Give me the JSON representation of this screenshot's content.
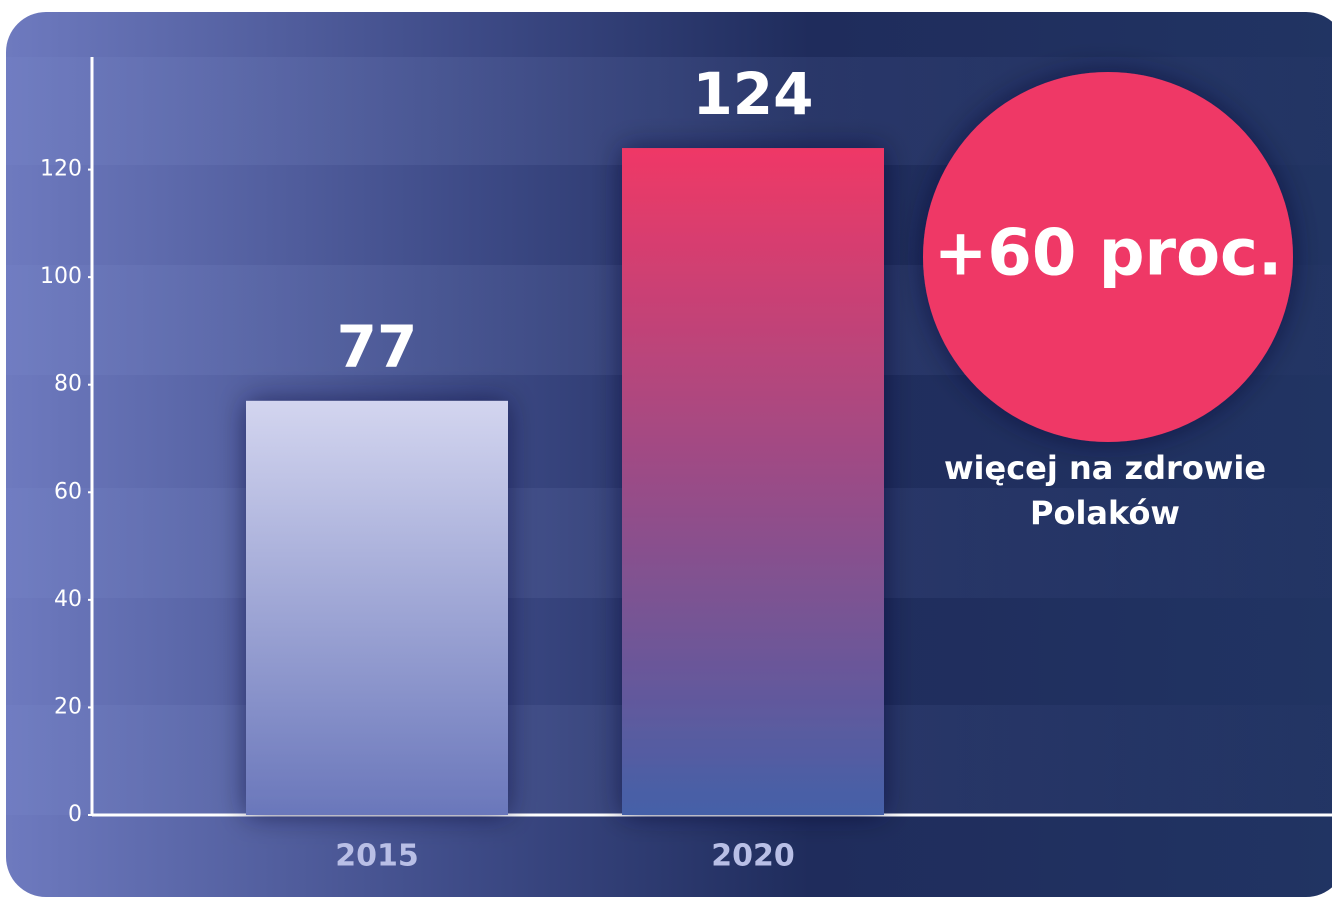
{
  "chart_data": {
    "type": "bar",
    "categories": [
      "2015",
      "2020"
    ],
    "values": [
      77,
      124
    ],
    "colors": [
      [
        "#d3d5ef",
        "#6a77bb"
      ],
      [
        "#ef3866",
        "#4460a8"
      ]
    ],
    "ylim": [
      0,
      140
    ],
    "yticks": [
      0,
      20,
      40,
      60,
      80,
      100,
      120
    ],
    "annotation": {
      "headline": "+60 proc.",
      "lines": [
        "więcej na zdrowie",
        "Polaków"
      ],
      "color": "#ef3866"
    }
  }
}
